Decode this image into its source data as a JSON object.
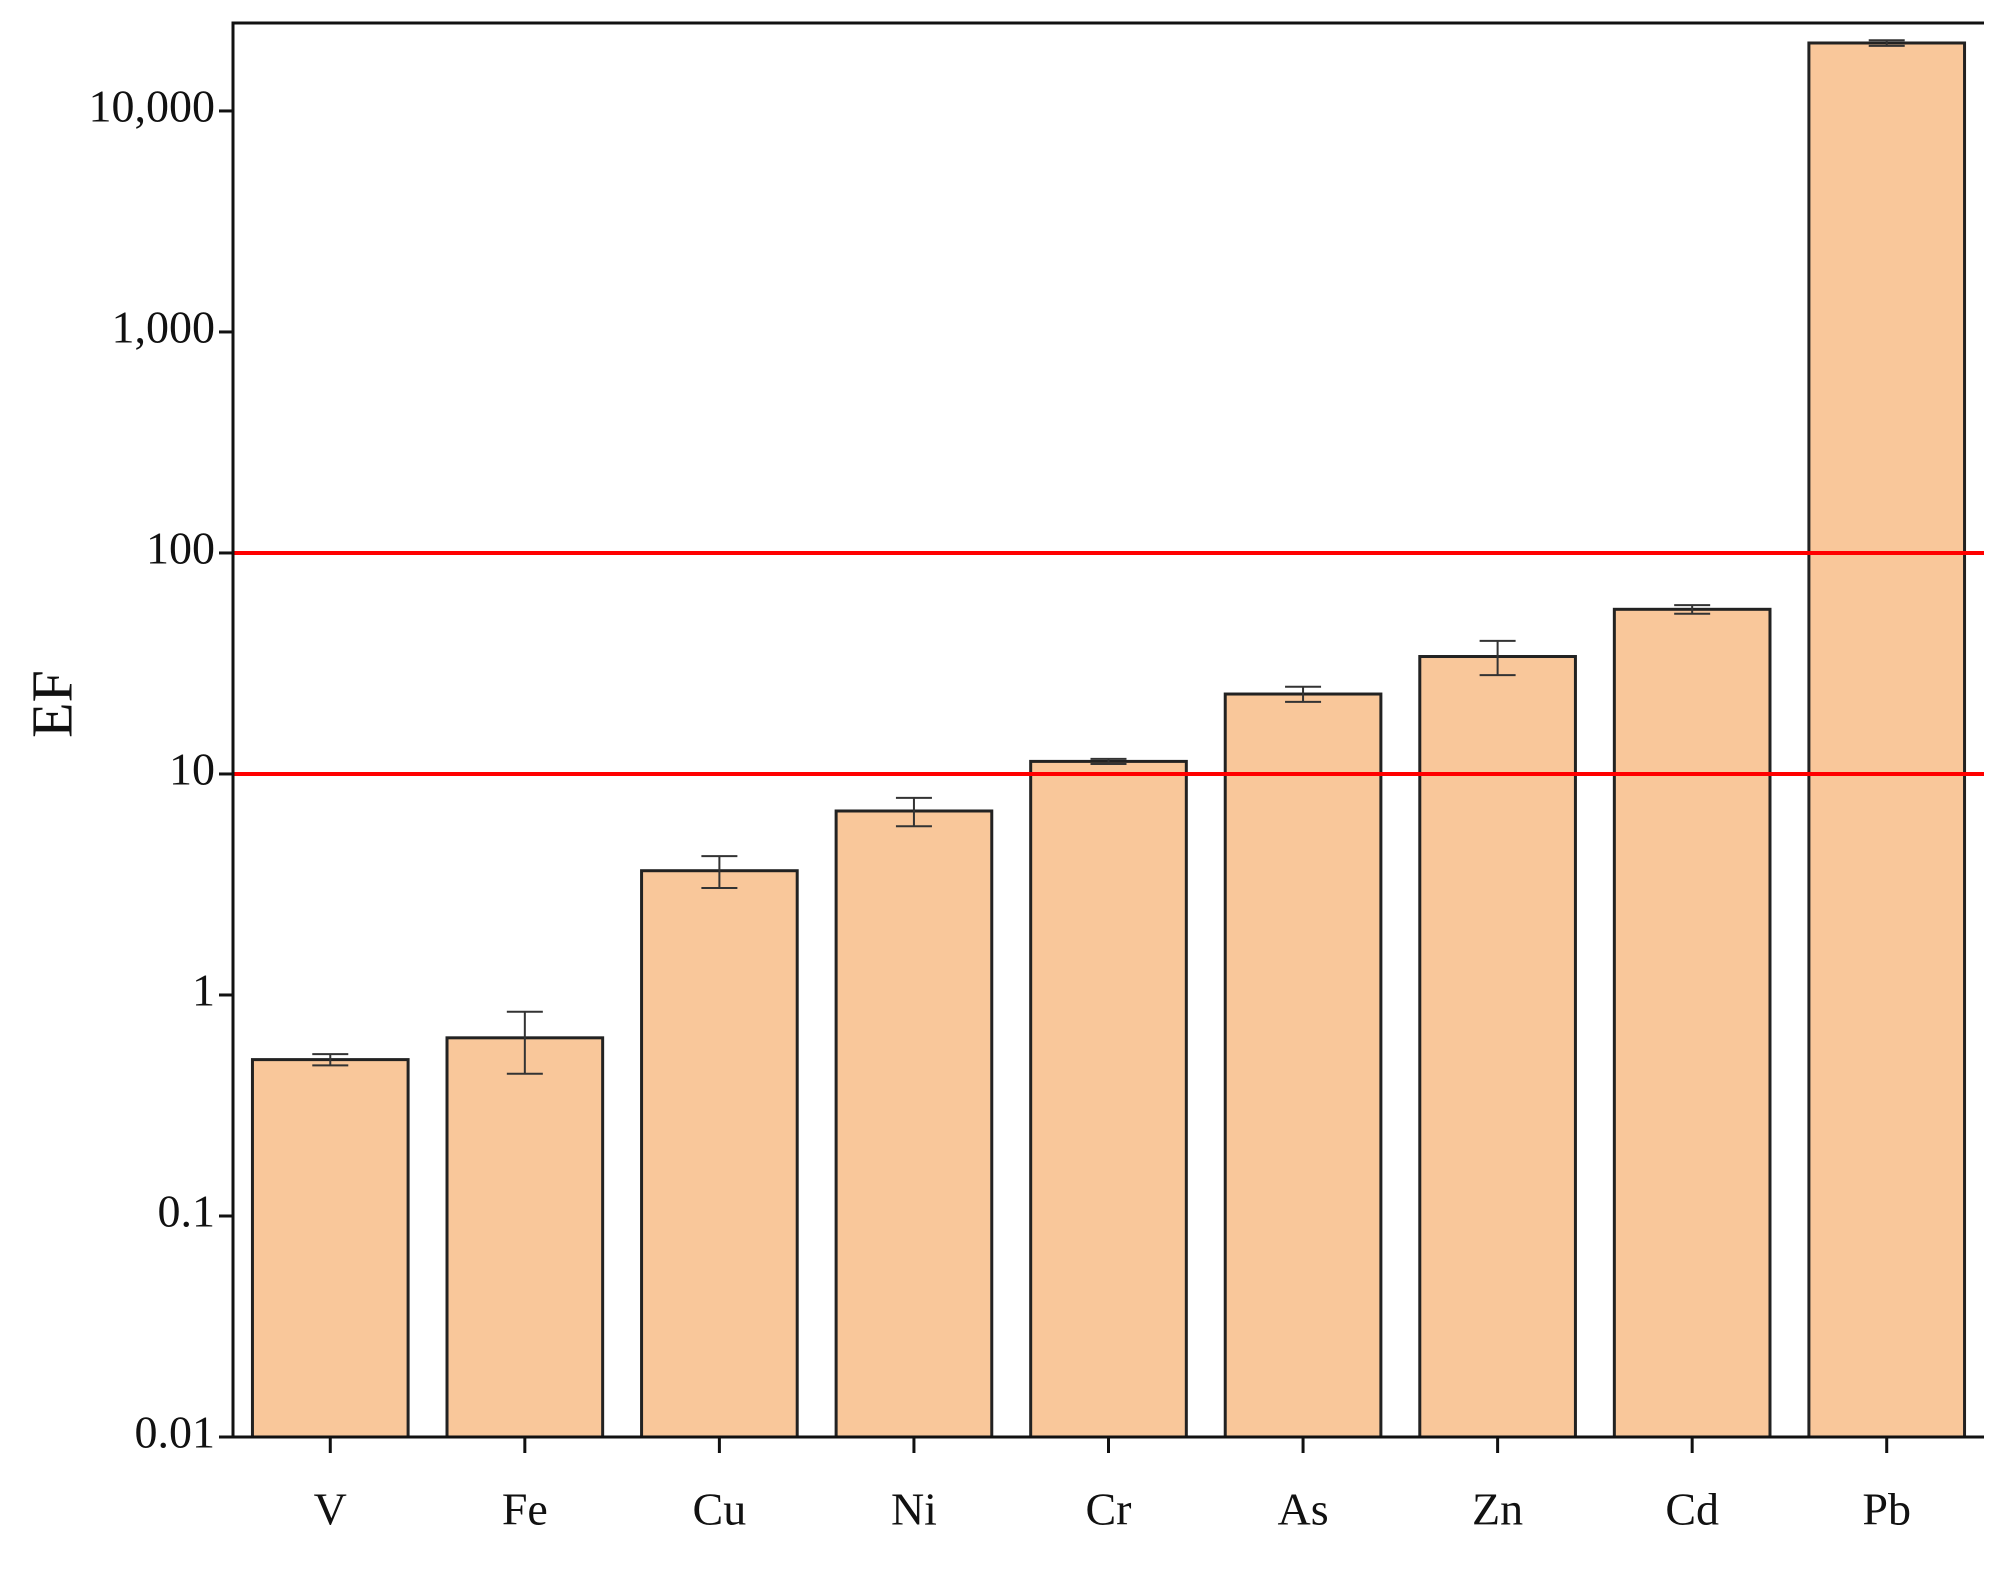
{
  "chart_data": {
    "type": "bar",
    "y_label": "EF",
    "categories": [
      "V",
      "Fe",
      "Cu",
      "Ni",
      "Cr",
      "As",
      "Zn",
      "Cd",
      "Pb"
    ],
    "values": [
      0.51,
      0.64,
      3.65,
      6.8,
      11.4,
      23,
      34,
      55.6,
      20300
    ],
    "errors": [
      0.03,
      0.2,
      0.6,
      1,
      0.3,
      1.8,
      6,
      2.5,
      600
    ],
    "color": "#f9c79a",
    "y_log": true,
    "ylim": [
      0.01,
      25000
    ],
    "yticks": [
      0.01,
      0.1,
      1,
      10,
      100,
      {
        "value": 1000,
        "label": "1,000"
      },
      {
        "value": 10000,
        "label": "10,000"
      }
    ],
    "reference_lines": [
      10,
      100
    ],
    "reference_color": "#ff0000"
  }
}
